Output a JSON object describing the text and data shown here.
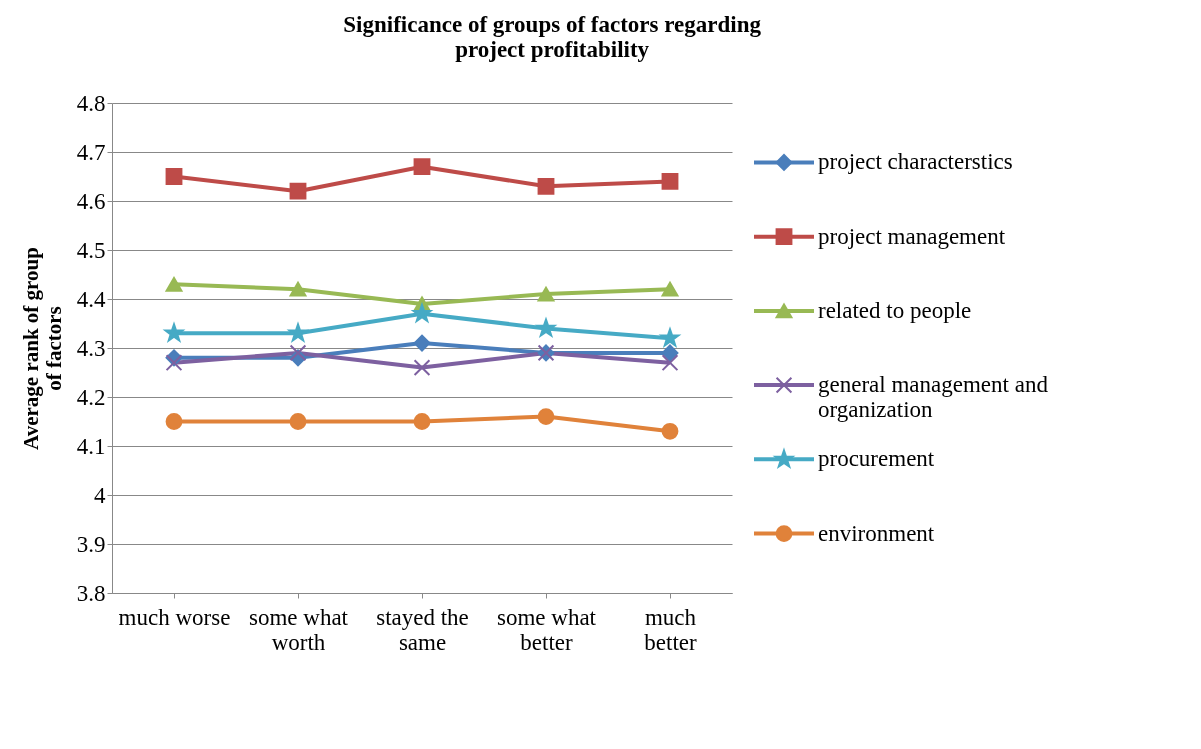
{
  "chart_data": {
    "type": "line",
    "title": "Significance of groups of factors regarding project profitability",
    "ylabel": "Average rank of group of factors",
    "categories": [
      "much worse",
      "some what worth",
      "stayed the same",
      "some what better",
      "much better"
    ],
    "series": [
      {
        "name": "project characterstics",
        "color": "#4a7ebb",
        "marker": "diamond",
        "values": [
          4.28,
          4.28,
          4.31,
          4.29,
          4.29
        ]
      },
      {
        "name": "project management",
        "color": "#be4b48",
        "marker": "square",
        "values": [
          4.65,
          4.62,
          4.67,
          4.63,
          4.64
        ]
      },
      {
        "name": "related to people",
        "color": "#98b954",
        "marker": "triangle",
        "values": [
          4.43,
          4.42,
          4.39,
          4.41,
          4.42
        ]
      },
      {
        "name": "general management and organization",
        "color": "#7d60a0",
        "marker": "cross",
        "values": [
          4.27,
          4.29,
          4.26,
          4.29,
          4.27
        ]
      },
      {
        "name": "procurement",
        "color": "#46aac5",
        "marker": "star",
        "values": [
          4.33,
          4.33,
          4.37,
          4.34,
          4.32
        ]
      },
      {
        "name": "environment",
        "color": "#e0823a",
        "marker": "circle",
        "values": [
          4.15,
          4.15,
          4.15,
          4.16,
          4.13
        ]
      }
    ],
    "ylim": [
      3.8,
      4.8
    ],
    "yticks": [
      3.8,
      3.9,
      4,
      4.1,
      4.2,
      4.3,
      4.4,
      4.5,
      4.6,
      4.7,
      4.8
    ],
    "grid": "y",
    "legend": "right",
    "line_style": "solid"
  }
}
